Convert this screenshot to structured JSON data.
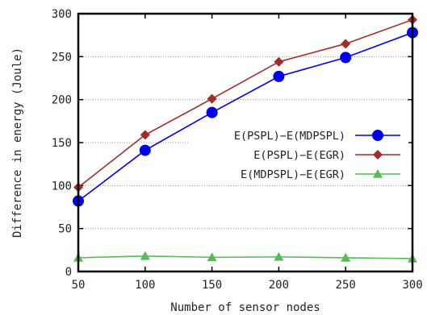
{
  "chart_data": {
    "type": "line",
    "xlabel": "Number of sensor nodes",
    "ylabel": "Difference in energy (Joule)",
    "xlim": [
      50,
      300
    ],
    "ylim": [
      0,
      300
    ],
    "xticks": [
      50,
      100,
      150,
      200,
      250,
      300
    ],
    "yticks": [
      0,
      50,
      100,
      150,
      200,
      250,
      300
    ],
    "grid": "horizontal",
    "legend_position": "center-right",
    "x": [
      50,
      100,
      150,
      200,
      250,
      300
    ],
    "series": [
      {
        "name": "E(PSPL)−E(MDPSPL)",
        "values": [
          82,
          141,
          185,
          227,
          249,
          278
        ],
        "color": "#0000ee",
        "marker": "circle"
      },
      {
        "name": "E(PSPL)−E(EGR)",
        "values": [
          98,
          159,
          201,
          244,
          265,
          293
        ],
        "color": "#a52a2a",
        "marker": "diamond"
      },
      {
        "name": "E(MDPSPL)−E(EGR)",
        "values": [
          16,
          18,
          16.5,
          17,
          16,
          15
        ],
        "color": "#55bb55",
        "marker": "triangle"
      }
    ]
  }
}
